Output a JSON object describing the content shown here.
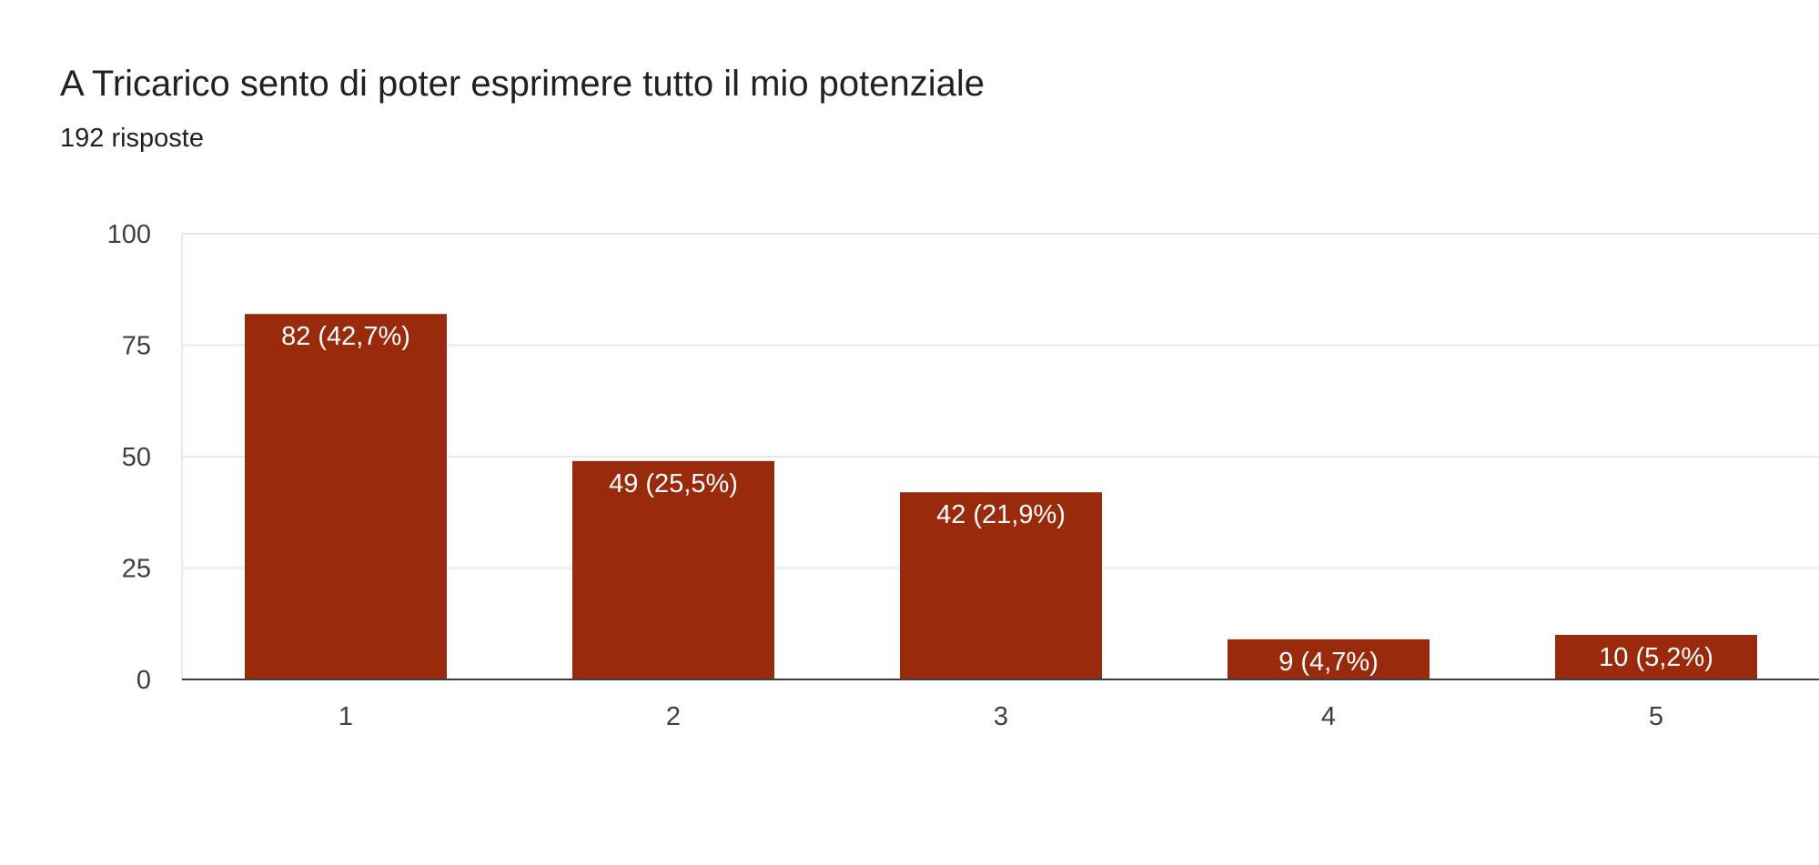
{
  "header": {
    "title": "A Tricarico sento di poter esprimere tutto il mio potenziale",
    "responses": "192 risposte"
  },
  "colors": {
    "bar": "#9a2a0c",
    "grid": "#e8e8e8",
    "axis": "#3c4043",
    "bar_label": "#ffffff",
    "tick_label": "#3c4043"
  },
  "chart_data": {
    "type": "bar",
    "title": "A Tricarico sento di poter esprimere tutto il mio potenziale",
    "subtitle": "192 risposte",
    "xlabel": "",
    "ylabel": "",
    "categories": [
      "1",
      "2",
      "3",
      "4",
      "5"
    ],
    "values": [
      82,
      49,
      42,
      9,
      10
    ],
    "data_labels": [
      "82 (42,7%)",
      "49 (25,5%)",
      "42 (21,9%)",
      "9 (4,7%)",
      "10 (5,2%)"
    ],
    "ylim": [
      0,
      100
    ],
    "yticks": [
      0,
      25,
      50,
      75,
      100
    ],
    "ytick_labels": [
      "0",
      "25",
      "50",
      "75",
      "100"
    ],
    "grid": true,
    "legend": "none"
  }
}
